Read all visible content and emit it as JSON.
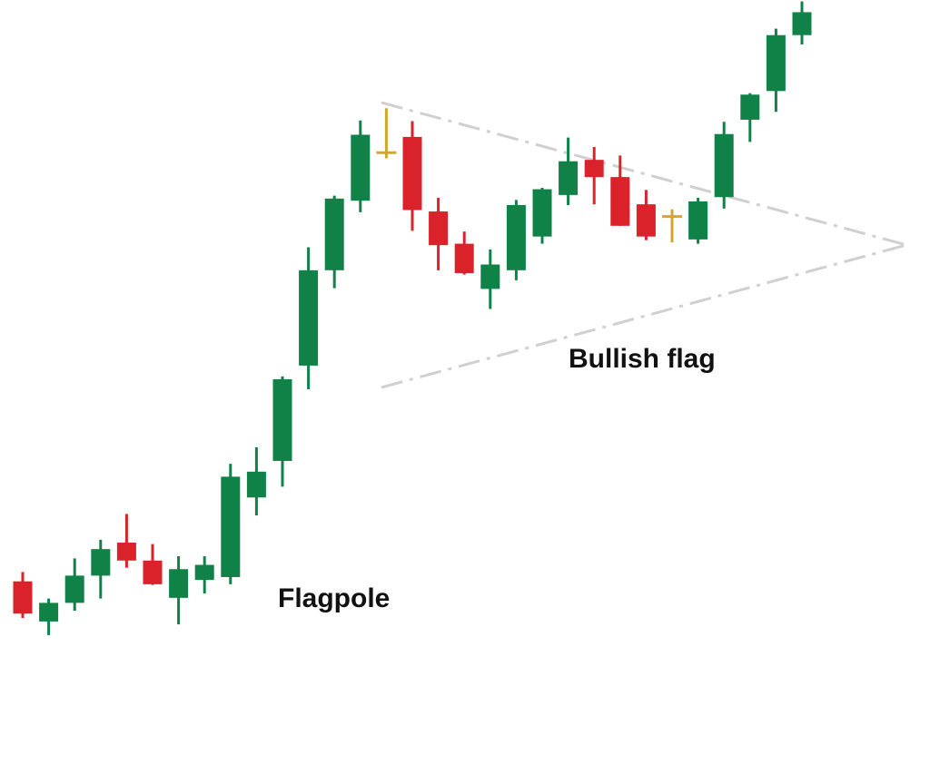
{
  "chart_data": {
    "type": "candlestick",
    "title": "",
    "xlabel": "",
    "ylabel": "",
    "ylim": [
      0,
      100
    ],
    "grid": false,
    "legend": "none",
    "colors": {
      "up": "#118247",
      "down": "#d9222a",
      "doji": "#d4a62a",
      "trendline": "#d0d0d0"
    },
    "candles": [
      {
        "o": 18.9,
        "h": 20.2,
        "l": 13.8,
        "c": 14.4
      },
      {
        "o": 13.3,
        "h": 16.5,
        "l": 11.4,
        "c": 15.9
      },
      {
        "o": 15.9,
        "h": 22.1,
        "l": 14.8,
        "c": 19.7
      },
      {
        "o": 19.7,
        "h": 24.7,
        "l": 16.5,
        "c": 23.4
      },
      {
        "o": 24.3,
        "h": 28.3,
        "l": 20.8,
        "c": 21.8
      },
      {
        "o": 21.8,
        "h": 24.1,
        "l": 18.4,
        "c": 18.5
      },
      {
        "o": 16.6,
        "h": 22.4,
        "l": 12.9,
        "c": 20.6
      },
      {
        "o": 19.1,
        "h": 22.4,
        "l": 17.2,
        "c": 21.2
      },
      {
        "o": 19.5,
        "h": 35.3,
        "l": 18.5,
        "c": 33.5
      },
      {
        "o": 30.6,
        "h": 37.6,
        "l": 28.1,
        "c": 34.2
      },
      {
        "o": 35.7,
        "h": 47.5,
        "l": 32.1,
        "c": 47.1
      },
      {
        "o": 49.0,
        "h": 65.5,
        "l": 45.7,
        "c": 62.3
      },
      {
        "o": 62.3,
        "h": 72.7,
        "l": 59.8,
        "c": 72.3
      },
      {
        "o": 72.0,
        "h": 83.2,
        "l": 70.4,
        "c": 81.2
      },
      {
        "o": 78.7,
        "h": 84.9,
        "l": 77.9,
        "c": 78.5
      },
      {
        "o": 80.9,
        "h": 83.1,
        "l": 67.8,
        "c": 70.7
      },
      {
        "o": 70.5,
        "h": 72.4,
        "l": 62.3,
        "c": 65.8
      },
      {
        "o": 66.0,
        "h": 67.7,
        "l": 61.7,
        "c": 61.9
      },
      {
        "o": 59.7,
        "h": 65.2,
        "l": 56.9,
        "c": 63.1
      },
      {
        "o": 62.3,
        "h": 72.1,
        "l": 60.9,
        "c": 71.4
      },
      {
        "o": 67.0,
        "h": 73.8,
        "l": 66.0,
        "c": 73.6
      },
      {
        "o": 72.8,
        "h": 80.8,
        "l": 71.4,
        "c": 77.5
      },
      {
        "o": 77.7,
        "h": 79.5,
        "l": 71.5,
        "c": 75.3
      },
      {
        "o": 75.3,
        "h": 78.3,
        "l": 68.5,
        "c": 68.5
      },
      {
        "o": 71.5,
        "h": 73.5,
        "l": 66.5,
        "c": 67.0
      },
      {
        "o": 69.8,
        "h": 70.8,
        "l": 66.2,
        "c": 69.6
      },
      {
        "o": 66.6,
        "h": 72.4,
        "l": 66.0,
        "c": 71.9
      },
      {
        "o": 72.5,
        "h": 83.0,
        "l": 70.9,
        "c": 81.3
      },
      {
        "o": 83.3,
        "h": 87.0,
        "l": 80.2,
        "c": 86.8
      },
      {
        "o": 87.3,
        "h": 96.0,
        "l": 84.4,
        "c": 95.1
      },
      {
        "o": 95.1,
        "h": 99.8,
        "l": 93.8,
        "c": 98.3
      }
    ],
    "annotations": [
      {
        "text": "Bullish flag"
      },
      {
        "text": "Flagpole"
      }
    ]
  }
}
